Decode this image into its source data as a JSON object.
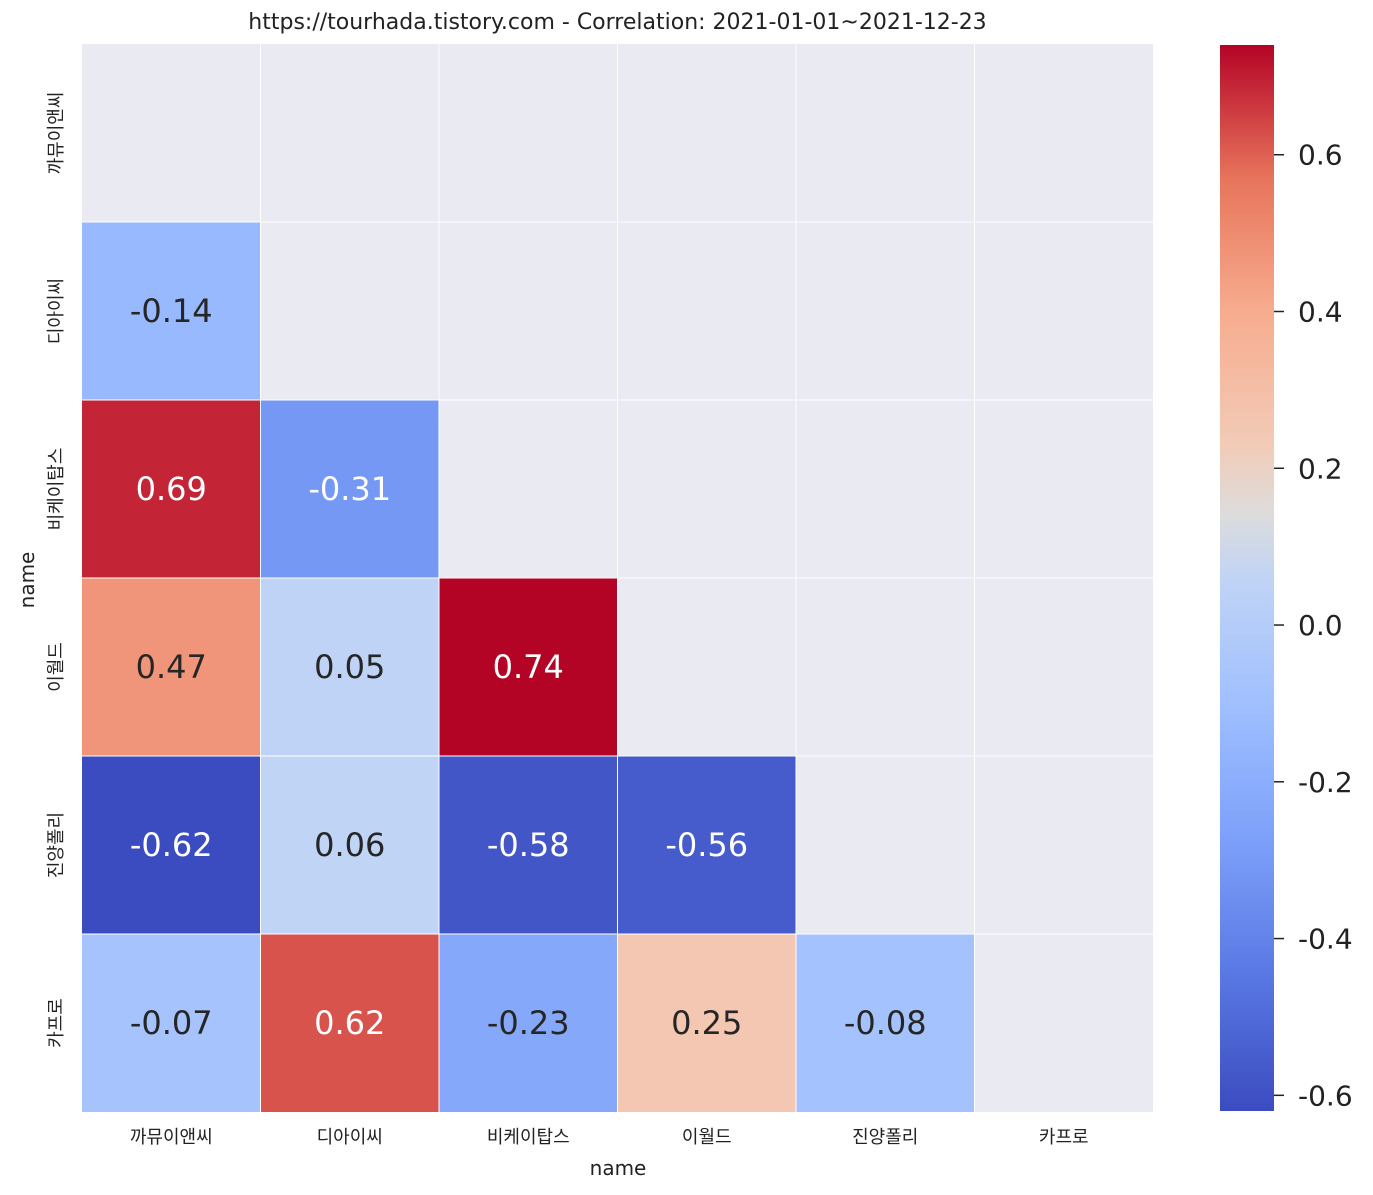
{
  "chart_data": {
    "type": "heatmap",
    "title": "https://tourhada.tistory.com - Correlation: 2021-01-01~2021-12-23",
    "xlabel": "name",
    "ylabel": "name",
    "labels": [
      "까뮤이앤씨",
      "디아이씨",
      "비케이탑스",
      "이월드",
      "진양폴리",
      "카프로"
    ],
    "matrix": [
      [
        null,
        null,
        null,
        null,
        null,
        null
      ],
      [
        -0.14,
        null,
        null,
        null,
        null,
        null
      ],
      [
        0.69,
        -0.31,
        null,
        null,
        null,
        null
      ],
      [
        0.47,
        0.05,
        0.74,
        null,
        null,
        null
      ],
      [
        -0.62,
        0.06,
        -0.58,
        -0.56,
        null,
        null
      ],
      [
        -0.07,
        0.62,
        -0.23,
        0.25,
        -0.08,
        null
      ]
    ],
    "masked": "upper triangle including diagonal",
    "colormap": "coolwarm",
    "vmin": -0.62,
    "vmax": 0.74,
    "colorbar_ticks": [
      "0.6",
      "0.4",
      "0.2",
      "0.0",
      "-0.2",
      "-0.4",
      "-0.6"
    ],
    "colorbar_tick_values": [
      0.6,
      0.4,
      0.2,
      0.0,
      -0.2,
      -0.4,
      -0.6
    ],
    "background_color": "#eaeaf2"
  }
}
